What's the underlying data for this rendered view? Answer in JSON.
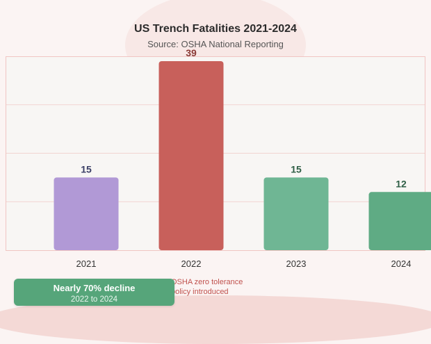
{
  "chart_data": {
    "type": "bar",
    "title": "US Trench Fatalities 2021-2024",
    "subtitle": "Source: OSHA National Reporting",
    "categories": [
      "2021",
      "2022",
      "2023",
      "2024"
    ],
    "values": [
      15,
      39,
      15,
      12
    ],
    "ylim": [
      0,
      40
    ],
    "grid": true,
    "colors": [
      "#b199d6",
      "#c8605b",
      "#6fb694",
      "#5fab84"
    ],
    "label_colors": [
      "#3b3f66",
      "#8a3a36",
      "#2e5e45",
      "#2e5e45"
    ]
  },
  "annotation": {
    "line1": "OSHA zero tolerance",
    "line2": "policy introduced"
  },
  "callout": {
    "title": "Nearly 70% decline",
    "subtitle": "2022 to 2024"
  }
}
